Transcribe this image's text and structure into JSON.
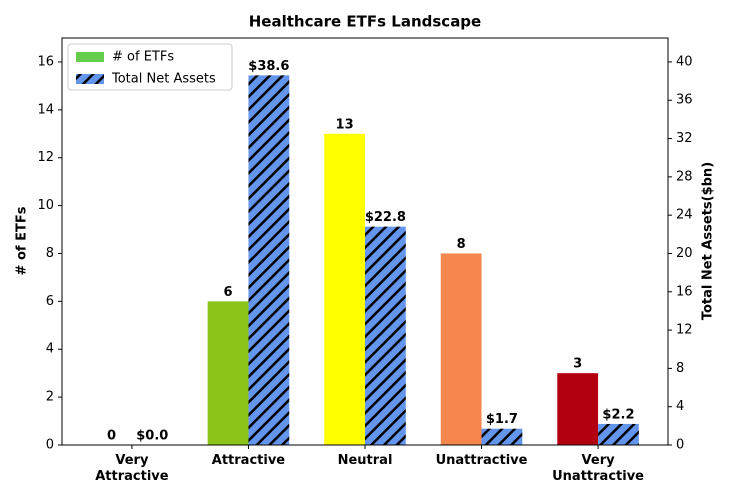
{
  "chart_data": {
    "type": "bar",
    "title": "Healthcare ETFs Landscape",
    "categories": [
      "Very\nAttractive",
      "Attractive",
      "Neutral",
      "Unattractive",
      "Very\nUnattractive"
    ],
    "y_label": "# of ETFs",
    "y2_label": "Total Net Assets($bn)",
    "ylim": [
      0,
      17
    ],
    "yticks": [
      0,
      2,
      4,
      6,
      8,
      10,
      12,
      14,
      16
    ],
    "y2lim": [
      0,
      42.5
    ],
    "y2ticks": [
      0,
      4,
      8,
      12,
      16,
      20,
      24,
      28,
      32,
      36,
      40
    ],
    "legend": "upper left",
    "series": [
      {
        "name": "# of ETFs",
        "color": "#66cc4d",
        "bar_colors": [
          "#66cc4d",
          "#8cc41a",
          "#ffff00",
          "#f5874e",
          "#b30010"
        ],
        "values": [
          0,
          6,
          13,
          8,
          3
        ]
      },
      {
        "name": "Total Net Assets",
        "color": "#6495ed",
        "hatch": true,
        "axis": "y2",
        "values": [
          0.0,
          38.6,
          22.8,
          1.7,
          2.2
        ],
        "value_labels": [
          "$0.0",
          "$38.6",
          "$22.8",
          "$1.7",
          "$2.2"
        ]
      }
    ]
  }
}
